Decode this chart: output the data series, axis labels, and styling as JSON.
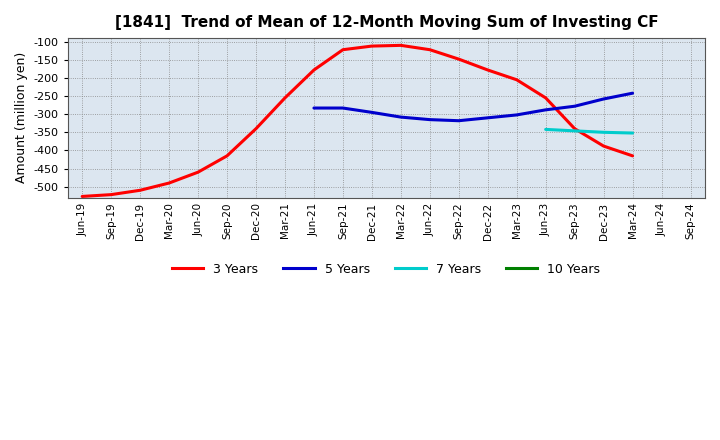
{
  "title": "[1841]  Trend of Mean of 12-Month Moving Sum of Investing CF",
  "ylabel": "Amount (million yen)",
  "ylim": [
    -530,
    -90
  ],
  "yticks": [
    -500,
    -450,
    -400,
    -350,
    -300,
    -250,
    -200,
    -150,
    -100
  ],
  "background_color": "#ffffff",
  "plot_bg_color": "#dce6f0",
  "grid_color": "#888888",
  "series": {
    "3_years": {
      "label": "3 Years",
      "color": "#ff0000",
      "x": [
        0,
        1,
        2,
        3,
        4,
        5,
        6,
        7,
        8,
        9,
        10,
        11,
        12,
        13,
        14,
        15,
        16,
        17,
        18,
        19
      ],
      "y": [
        -527,
        -522,
        -510,
        -490,
        -460,
        -415,
        -340,
        -255,
        -178,
        -122,
        -112,
        -110,
        -122,
        -148,
        -178,
        -205,
        -255,
        -340,
        -388,
        -415
      ]
    },
    "5_years": {
      "label": "5 Years",
      "color": "#0000cc",
      "x": [
        8,
        9,
        10,
        11,
        12,
        13,
        14,
        15,
        16,
        17,
        18,
        19
      ],
      "y": [
        -283,
        -283,
        -295,
        -308,
        -315,
        -318,
        -310,
        -302,
        -288,
        -278,
        -258,
        -242
      ]
    },
    "7_years": {
      "label": "7 Years",
      "color": "#00cccc",
      "x": [
        16,
        17,
        18,
        19
      ],
      "y": [
        -342,
        -346,
        -350,
        -352
      ]
    },
    "10_years": {
      "label": "10 Years",
      "color": "#008000",
      "x": [],
      "y": []
    }
  },
  "xtick_labels": [
    "Jun-19",
    "Sep-19",
    "Dec-19",
    "Mar-20",
    "Jun-20",
    "Sep-20",
    "Dec-20",
    "Mar-21",
    "Jun-21",
    "Sep-21",
    "Dec-21",
    "Mar-22",
    "Jun-22",
    "Sep-22",
    "Dec-22",
    "Mar-23",
    "Jun-23",
    "Sep-23",
    "Dec-23",
    "Mar-24",
    "Jun-24",
    "Sep-24"
  ],
  "linewidth": 2.2
}
